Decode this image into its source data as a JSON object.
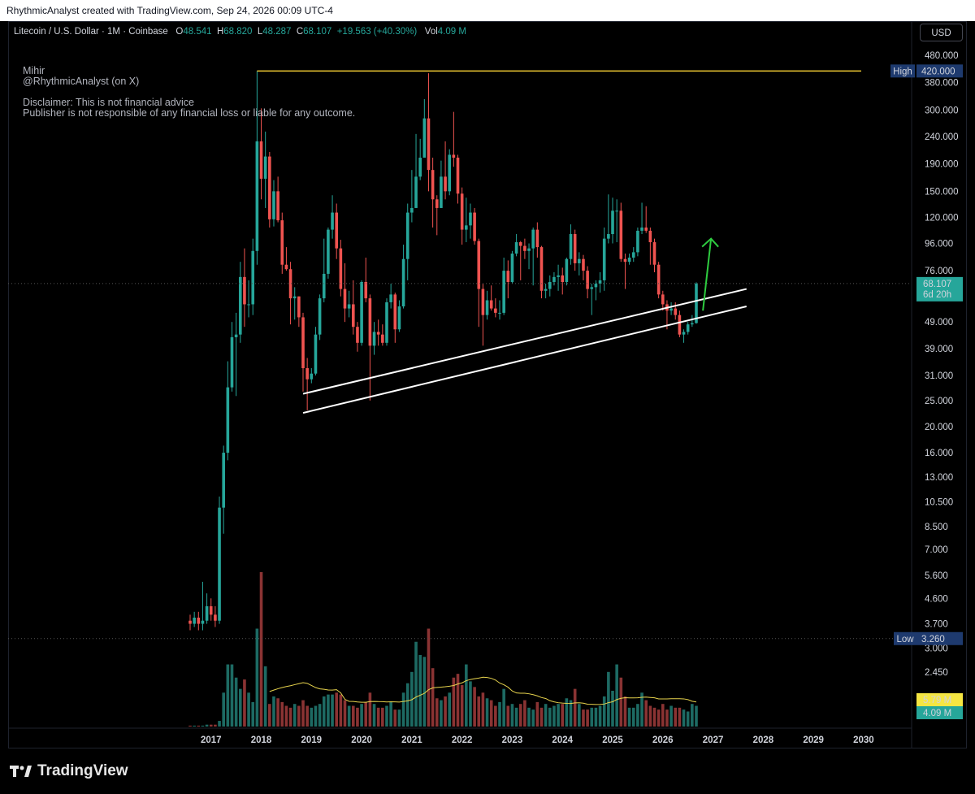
{
  "header": {
    "title": "RhythmicAnalyst created with TradingView.com, Sep 24, 2026 00:09 UTC-4"
  },
  "legend": {
    "symbol": "Litecoin / U.S. Dollar · 1M · Coinbase",
    "o_label": "O",
    "o": "48.541",
    "h_label": "H",
    "h": "68.820",
    "l_label": "L",
    "l": "48.287",
    "c_label": "C",
    "c": "68.107",
    "change": "+19.563 (+40.30%)",
    "vol_label": "Vol",
    "vol": "4.09 M"
  },
  "note": {
    "line1": "Mihir",
    "line2": "@RhythmicAnalyst (on X)",
    "line3": "Disclaimer: This is not financial advice",
    "line4": "Publisher is not responsible of any financial loss or liable for any outcome."
  },
  "currency": "USD",
  "brand": "TradingView",
  "colors": {
    "up": "#26a69a",
    "down": "#ef5350",
    "high_line": "#f0c932",
    "arrow": "#2ecc40",
    "ma": "#e8d44d",
    "price_badge": "#26a69a",
    "label_bg": "#1e3a6e"
  },
  "chart_data": {
    "type": "candlestick",
    "scale": "log",
    "yticks": [
      "480.000",
      "380.000",
      "300.000",
      "240.000",
      "190.000",
      "150.000",
      "120.000",
      "96.000",
      "76.000",
      "49.000",
      "39.000",
      "31.000",
      "25.000",
      "20.000",
      "16.000",
      "13.000",
      "10.500",
      "8.500",
      "7.000",
      "5.600",
      "4.600",
      "3.700",
      "3.000",
      "2.450"
    ],
    "xticks": [
      "2017",
      "2018",
      "2019",
      "2020",
      "2021",
      "2022",
      "2023",
      "2024",
      "2025",
      "2026",
      "2027",
      "2028",
      "2029",
      "2030"
    ],
    "ylim": [
      2.0,
      560
    ],
    "high": {
      "label": "High",
      "value": "420.000"
    },
    "low": {
      "label": "Low",
      "value": "3.260"
    },
    "last_price": {
      "value": "68.107",
      "countdown": "6d 20h"
    },
    "volume_labels": {
      "ma": "5.79 M",
      "vol": "4.09 M"
    },
    "trendlines": [
      {
        "from": [
          "2018-11",
          26.5
        ],
        "to": [
          "2027-09",
          65
        ]
      },
      {
        "from": [
          "2018-11",
          22.5
        ],
        "to": [
          "2027-09",
          56
        ]
      }
    ],
    "candles": [
      {
        "t": "2016-08",
        "o": 3.8,
        "h": 4.0,
        "l": 3.5,
        "c": 3.7
      },
      {
        "t": "2016-09",
        "o": 3.7,
        "h": 4.1,
        "l": 3.6,
        "c": 3.9
      },
      {
        "t": "2016-10",
        "o": 3.9,
        "h": 4.1,
        "l": 3.5,
        "c": 3.7
      },
      {
        "t": "2016-11",
        "o": 3.7,
        "h": 5.3,
        "l": 3.5,
        "c": 3.8
      },
      {
        "t": "2016-12",
        "o": 3.8,
        "h": 4.8,
        "l": 3.7,
        "c": 4.3
      },
      {
        "t": "2017-01",
        "o": 4.3,
        "h": 4.6,
        "l": 3.8,
        "c": 4.0
      },
      {
        "t": "2017-02",
        "o": 4.0,
        "h": 4.3,
        "l": 3.6,
        "c": 3.8
      },
      {
        "t": "2017-03",
        "o": 3.8,
        "h": 11.0,
        "l": 3.7,
        "c": 10.0
      },
      {
        "t": "2017-04",
        "o": 10.0,
        "h": 17.0,
        "l": 8.0,
        "c": 16.0
      },
      {
        "t": "2017-05",
        "o": 16.0,
        "h": 35.0,
        "l": 15.0,
        "c": 28.0
      },
      {
        "t": "2017-06",
        "o": 28.0,
        "h": 49.0,
        "l": 27.0,
        "c": 43.0
      },
      {
        "t": "2017-07",
        "o": 43.0,
        "h": 53.0,
        "l": 26.0,
        "c": 44.0
      },
      {
        "t": "2017-08",
        "o": 44.0,
        "h": 82.0,
        "l": 41.0,
        "c": 72.0
      },
      {
        "t": "2017-09",
        "o": 72.0,
        "h": 92.0,
        "l": 47.0,
        "c": 57.0
      },
      {
        "t": "2017-10",
        "o": 57.0,
        "h": 70.0,
        "l": 51.0,
        "c": 57.0
      },
      {
        "t": "2017-11",
        "o": 57.0,
        "h": 100.0,
        "l": 52.0,
        "c": 90.0
      },
      {
        "t": "2017-12",
        "o": 90.0,
        "h": 420.0,
        "l": 80.0,
        "c": 230.0
      },
      {
        "t": "2018-01",
        "o": 230.0,
        "h": 305.0,
        "l": 140.0,
        "c": 167.0
      },
      {
        "t": "2018-02",
        "o": 167.0,
        "h": 250.0,
        "l": 130.0,
        "c": 202.0
      },
      {
        "t": "2018-03",
        "o": 202.0,
        "h": 210.0,
        "l": 110.0,
        "c": 118.0
      },
      {
        "t": "2018-04",
        "o": 118.0,
        "h": 165.0,
        "l": 111.0,
        "c": 150.0
      },
      {
        "t": "2018-05",
        "o": 150.0,
        "h": 170.0,
        "l": 115.0,
        "c": 117.0
      },
      {
        "t": "2018-06",
        "o": 117.0,
        "h": 125.0,
        "l": 74.0,
        "c": 80.0
      },
      {
        "t": "2018-07",
        "o": 80.0,
        "h": 93.0,
        "l": 76.0,
        "c": 77.0
      },
      {
        "t": "2018-08",
        "o": 77.0,
        "h": 82.0,
        "l": 48.0,
        "c": 60.0
      },
      {
        "t": "2018-09",
        "o": 60.0,
        "h": 66.0,
        "l": 50.0,
        "c": 61.0
      },
      {
        "t": "2018-10",
        "o": 61.0,
        "h": 61.0,
        "l": 47.0,
        "c": 51.0
      },
      {
        "t": "2018-11",
        "o": 51.0,
        "h": 53.0,
        "l": 27.0,
        "c": 33.0
      },
      {
        "t": "2018-12",
        "o": 33.0,
        "h": 36.0,
        "l": 23.0,
        "c": 30.0
      },
      {
        "t": "2019-01",
        "o": 30.0,
        "h": 33.0,
        "l": 29.0,
        "c": 31.5
      },
      {
        "t": "2019-02",
        "o": 31.5,
        "h": 47.0,
        "l": 31.0,
        "c": 44.0
      },
      {
        "t": "2019-03",
        "o": 44.0,
        "h": 62.0,
        "l": 42.0,
        "c": 60.0
      },
      {
        "t": "2019-04",
        "o": 60.0,
        "h": 100.0,
        "l": 58.0,
        "c": 74.0
      },
      {
        "t": "2019-05",
        "o": 74.0,
        "h": 110.0,
        "l": 71.0,
        "c": 108.0
      },
      {
        "t": "2019-06",
        "o": 108.0,
        "h": 145.0,
        "l": 100.0,
        "c": 125.0
      },
      {
        "t": "2019-07",
        "o": 125.0,
        "h": 135.0,
        "l": 84.0,
        "c": 92.0
      },
      {
        "t": "2019-08",
        "o": 92.0,
        "h": 99.0,
        "l": 61.0,
        "c": 65.0
      },
      {
        "t": "2019-09",
        "o": 65.0,
        "h": 81.0,
        "l": 49.0,
        "c": 55.0
      },
      {
        "t": "2019-10",
        "o": 55.0,
        "h": 64.0,
        "l": 51.0,
        "c": 57.0
      },
      {
        "t": "2019-11",
        "o": 57.0,
        "h": 70.0,
        "l": 44.0,
        "c": 47.0
      },
      {
        "t": "2019-12",
        "o": 47.0,
        "h": 49.0,
        "l": 38.0,
        "c": 41.0
      },
      {
        "t": "2020-01",
        "o": 41.0,
        "h": 70.0,
        "l": 40.0,
        "c": 69.0
      },
      {
        "t": "2020-02",
        "o": 69.0,
        "h": 85.0,
        "l": 58.0,
        "c": 60.0
      },
      {
        "t": "2020-03",
        "o": 60.0,
        "h": 62.0,
        "l": 25.0,
        "c": 40.0
      },
      {
        "t": "2020-04",
        "o": 40.0,
        "h": 49.0,
        "l": 37.0,
        "c": 45.0
      },
      {
        "t": "2020-05",
        "o": 45.0,
        "h": 50.0,
        "l": 40.0,
        "c": 44.0
      },
      {
        "t": "2020-06",
        "o": 44.0,
        "h": 48.0,
        "l": 40.0,
        "c": 41.0
      },
      {
        "t": "2020-07",
        "o": 41.0,
        "h": 60.0,
        "l": 40.0,
        "c": 58.0
      },
      {
        "t": "2020-08",
        "o": 58.0,
        "h": 68.0,
        "l": 55.0,
        "c": 62.0
      },
      {
        "t": "2020-09",
        "o": 62.0,
        "h": 63.0,
        "l": 41.0,
        "c": 46.0
      },
      {
        "t": "2020-10",
        "o": 46.0,
        "h": 59.0,
        "l": 45.0,
        "c": 56.0
      },
      {
        "t": "2020-11",
        "o": 56.0,
        "h": 95.0,
        "l": 55.0,
        "c": 84.0
      },
      {
        "t": "2020-12",
        "o": 84.0,
        "h": 135.0,
        "l": 70.0,
        "c": 125.0
      },
      {
        "t": "2021-01",
        "o": 125.0,
        "h": 180.0,
        "l": 115.0,
        "c": 130.0
      },
      {
        "t": "2021-02",
        "o": 130.0,
        "h": 245.0,
        "l": 130.0,
        "c": 170.0
      },
      {
        "t": "2021-03",
        "o": 170.0,
        "h": 235.0,
        "l": 165.0,
        "c": 200.0
      },
      {
        "t": "2021-04",
        "o": 200.0,
        "h": 330.0,
        "l": 200.0,
        "c": 280.0
      },
      {
        "t": "2021-05",
        "o": 280.0,
        "h": 412.0,
        "l": 150.0,
        "c": 180.0
      },
      {
        "t": "2021-06",
        "o": 180.0,
        "h": 200.0,
        "l": 110.0,
        "c": 140.0
      },
      {
        "t": "2021-07",
        "o": 140.0,
        "h": 145.0,
        "l": 103.0,
        "c": 130.0
      },
      {
        "t": "2021-08",
        "o": 130.0,
        "h": 195.0,
        "l": 130.0,
        "c": 170.0
      },
      {
        "t": "2021-09",
        "o": 170.0,
        "h": 230.0,
        "l": 140.0,
        "c": 150.0
      },
      {
        "t": "2021-10",
        "o": 150.0,
        "h": 215.0,
        "l": 145.0,
        "c": 205.0
      },
      {
        "t": "2021-11",
        "o": 205.0,
        "h": 296.0,
        "l": 185.0,
        "c": 200.0
      },
      {
        "t": "2021-12",
        "o": 200.0,
        "h": 205.0,
        "l": 135.0,
        "c": 147.0
      },
      {
        "t": "2022-01",
        "o": 147.0,
        "h": 155.0,
        "l": 95.0,
        "c": 108.0
      },
      {
        "t": "2022-02",
        "o": 108.0,
        "h": 142.0,
        "l": 97.0,
        "c": 112.0
      },
      {
        "t": "2022-03",
        "o": 112.0,
        "h": 135.0,
        "l": 100.0,
        "c": 125.0
      },
      {
        "t": "2022-04",
        "o": 125.0,
        "h": 130.0,
        "l": 95.0,
        "c": 98.0
      },
      {
        "t": "2022-05",
        "o": 98.0,
        "h": 100.0,
        "l": 47.0,
        "c": 65.0
      },
      {
        "t": "2022-06",
        "o": 65.0,
        "h": 68.0,
        "l": 40.0,
        "c": 52.0
      },
      {
        "t": "2022-07",
        "o": 52.0,
        "h": 64.0,
        "l": 50.0,
        "c": 59.0
      },
      {
        "t": "2022-08",
        "o": 59.0,
        "h": 67.0,
        "l": 54.0,
        "c": 55.0
      },
      {
        "t": "2022-09",
        "o": 55.0,
        "h": 60.0,
        "l": 51.0,
        "c": 53.0
      },
      {
        "t": "2022-10",
        "o": 53.0,
        "h": 59.0,
        "l": 50.0,
        "c": 53.0
      },
      {
        "t": "2022-11",
        "o": 53.0,
        "h": 85.0,
        "l": 52.0,
        "c": 76.0
      },
      {
        "t": "2022-12",
        "o": 76.0,
        "h": 83.0,
        "l": 60.0,
        "c": 69.0
      },
      {
        "t": "2023-01",
        "o": 69.0,
        "h": 90.0,
        "l": 68.0,
        "c": 88.0
      },
      {
        "t": "2023-02",
        "o": 88.0,
        "h": 104.0,
        "l": 86.0,
        "c": 97.0
      },
      {
        "t": "2023-03",
        "o": 97.0,
        "h": 98.0,
        "l": 70.0,
        "c": 94.0
      },
      {
        "t": "2023-04",
        "o": 94.0,
        "h": 100.0,
        "l": 84.0,
        "c": 90.0
      },
      {
        "t": "2023-05",
        "o": 90.0,
        "h": 96.0,
        "l": 77.0,
        "c": 92.0
      },
      {
        "t": "2023-06",
        "o": 92.0,
        "h": 110.0,
        "l": 67.0,
        "c": 108.0
      },
      {
        "t": "2023-07",
        "o": 108.0,
        "h": 115.0,
        "l": 85.0,
        "c": 93.0
      },
      {
        "t": "2023-08",
        "o": 93.0,
        "h": 94.0,
        "l": 60.0,
        "c": 64.0
      },
      {
        "t": "2023-09",
        "o": 64.0,
        "h": 68.0,
        "l": 60.0,
        "c": 65.0
      },
      {
        "t": "2023-10",
        "o": 65.0,
        "h": 73.0,
        "l": 61.0,
        "c": 69.0
      },
      {
        "t": "2023-11",
        "o": 69.0,
        "h": 75.0,
        "l": 67.0,
        "c": 72.0
      },
      {
        "t": "2023-12",
        "o": 72.0,
        "h": 80.0,
        "l": 64.0,
        "c": 73.0
      },
      {
        "t": "2024-01",
        "o": 73.0,
        "h": 78.0,
        "l": 62.0,
        "c": 69.0
      },
      {
        "t": "2024-02",
        "o": 69.0,
        "h": 85.0,
        "l": 67.0,
        "c": 84.0
      },
      {
        "t": "2024-03",
        "o": 84.0,
        "h": 113.0,
        "l": 80.0,
        "c": 104.0
      },
      {
        "t": "2024-04",
        "o": 104.0,
        "h": 108.0,
        "l": 76.0,
        "c": 81.0
      },
      {
        "t": "2024-05",
        "o": 81.0,
        "h": 89.0,
        "l": 73.0,
        "c": 84.0
      },
      {
        "t": "2024-06",
        "o": 84.0,
        "h": 87.0,
        "l": 70.0,
        "c": 76.0
      },
      {
        "t": "2024-07",
        "o": 76.0,
        "h": 79.0,
        "l": 60.0,
        "c": 65.0
      },
      {
        "t": "2024-08",
        "o": 65.0,
        "h": 68.0,
        "l": 52.0,
        "c": 66.0
      },
      {
        "t": "2024-09",
        "o": 66.0,
        "h": 70.0,
        "l": 59.0,
        "c": 68.0
      },
      {
        "t": "2024-10",
        "o": 68.0,
        "h": 75.0,
        "l": 63.0,
        "c": 70.0
      },
      {
        "t": "2024-11",
        "o": 70.0,
        "h": 110.0,
        "l": 64.0,
        "c": 100.0
      },
      {
        "t": "2024-12",
        "o": 100.0,
        "h": 146.0,
        "l": 96.0,
        "c": 104.0
      },
      {
        "t": "2025-01",
        "o": 104.0,
        "h": 142.0,
        "l": 96.0,
        "c": 127.0
      },
      {
        "t": "2025-02",
        "o": 127.0,
        "h": 140.0,
        "l": 97.0,
        "c": 127.0
      },
      {
        "t": "2025-03",
        "o": 127.0,
        "h": 136.0,
        "l": 82.0,
        "c": 84.0
      },
      {
        "t": "2025-04",
        "o": 84.0,
        "h": 88.0,
        "l": 65.0,
        "c": 82.0
      },
      {
        "t": "2025-05",
        "o": 82.0,
        "h": 88.0,
        "l": 80.0,
        "c": 85.0
      },
      {
        "t": "2025-06",
        "o": 85.0,
        "h": 93.0,
        "l": 82.0,
        "c": 89.0
      },
      {
        "t": "2025-07",
        "o": 89.0,
        "h": 110.0,
        "l": 86.0,
        "c": 107.0
      },
      {
        "t": "2025-08",
        "o": 107.0,
        "h": 136.0,
        "l": 104.0,
        "c": 110.0
      },
      {
        "t": "2025-09",
        "o": 110.0,
        "h": 132.0,
        "l": 105.0,
        "c": 107.0
      },
      {
        "t": "2025-10",
        "o": 107.0,
        "h": 110.0,
        "l": 80.0,
        "c": 97.0
      },
      {
        "t": "2025-11",
        "o": 97.0,
        "h": 100.0,
        "l": 75.0,
        "c": 80.0
      },
      {
        "t": "2025-12",
        "o": 80.0,
        "h": 82.0,
        "l": 60.0,
        "c": 62.0
      },
      {
        "t": "2026-01",
        "o": 62.0,
        "h": 64.0,
        "l": 54.0,
        "c": 57.0
      },
      {
        "t": "2026-02",
        "o": 57.0,
        "h": 59.0,
        "l": 46.0,
        "c": 54.0
      },
      {
        "t": "2026-03",
        "o": 54.0,
        "h": 58.0,
        "l": 52.0,
        "c": 55.0
      },
      {
        "t": "2026-04",
        "o": 55.0,
        "h": 58.0,
        "l": 50.0,
        "c": 52.0
      },
      {
        "t": "2026-05",
        "o": 52.0,
        "h": 54.0,
        "l": 43.0,
        "c": 44.0
      },
      {
        "t": "2026-06",
        "o": 44.0,
        "h": 46.0,
        "l": 41.0,
        "c": 45.0
      },
      {
        "t": "2026-07",
        "o": 45.0,
        "h": 49.0,
        "l": 44.0,
        "c": 48.0
      },
      {
        "t": "2026-08",
        "o": 48.0,
        "h": 52.0,
        "l": 47.0,
        "c": 48.5
      },
      {
        "t": "2026-09",
        "o": 48.541,
        "h": 68.82,
        "l": 48.287,
        "c": 68.107
      }
    ],
    "volume": [
      0.05,
      0.05,
      0.05,
      0.05,
      0.1,
      0.1,
      0.1,
      0.3,
      1.8,
      3.3,
      3.3,
      2.6,
      2.0,
      2.5,
      1.8,
      1.3,
      5.2,
      8.2,
      3.2,
      1.2,
      1.6,
      1.5,
      1.3,
      1.1,
      1.0,
      1.2,
      1.1,
      1.4,
      1.1,
      1.0,
      1.1,
      1.2,
      1.6,
      1.7,
      1.7,
      1.8,
      1.7,
      1.4,
      1.1,
      1.1,
      1.0,
      1.2,
      1.3,
      1.8,
      1.2,
      1.0,
      1.0,
      1.1,
      1.3,
      0.9,
      0.9,
      1.8,
      2.3,
      2.9,
      4.5,
      3.8,
      3.7,
      5.2,
      3.1,
      1.5,
      1.4,
      1.6,
      1.8,
      2.6,
      2.8,
      2.2,
      3.3,
      2.4,
      2.1,
      1.6,
      1.8,
      1.5,
      1.4,
      1.1,
      1.3,
      2.0,
      1.1,
      1.2,
      1.0,
      1.2,
      1.4,
      1.0,
      0.9,
      1.3,
      1.0,
      1.2,
      1.0,
      1.1,
      1.2,
      1.2,
      1.5,
      1.4,
      2.0,
      1.2,
      0.9,
      0.9,
      1.0,
      1.0,
      1.1,
      1.6,
      2.9,
      1.9,
      3.3,
      2.6,
      1.6,
      1.0,
      1.0,
      1.2,
      1.8,
      1.4,
      1.1,
      1.0,
      0.9,
      1.2,
      0.9,
      1.1,
      1.0,
      1.0,
      0.9,
      0.8,
      1.2,
      1.1
    ],
    "volume_ma": [
      5.79
    ]
  }
}
